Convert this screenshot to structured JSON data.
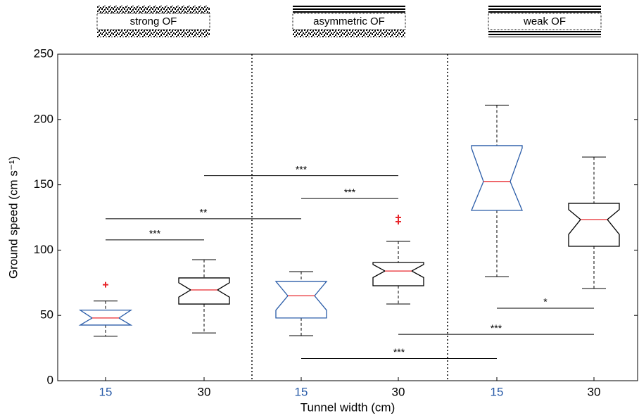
{
  "chart_data": {
    "type": "box",
    "groups": [
      {
        "label": "strong OF"
      },
      {
        "label": "asymmetric OF"
      },
      {
        "label": "weak OF"
      }
    ],
    "categories": [
      "15",
      "30",
      "15",
      "30",
      "15",
      "30"
    ],
    "colors": [
      "#2a5ca8",
      "#000000",
      "#2a5ca8",
      "#000000",
      "#2a5ca8",
      "#000000"
    ],
    "median_color": "#e8262b",
    "boxes": [
      {
        "whisker_low": 34,
        "q1": 42.6,
        "median": 48,
        "q3": 54,
        "whisker_high": 61,
        "notch": [
          41,
          55
        ],
        "outliers": [
          73.5
        ]
      },
      {
        "whisker_low": 36.6,
        "q1": 58.7,
        "median": 69.5,
        "q3": 78.7,
        "whisker_high": 92.7,
        "notch": [
          64,
          75
        ],
        "outliers": []
      },
      {
        "whisker_low": 34.5,
        "q1": 48,
        "median": 65,
        "q3": 76,
        "whisker_high": 83.5,
        "notch": [
          54,
          76
        ],
        "outliers": []
      },
      {
        "whisker_low": 58.7,
        "q1": 72.7,
        "median": 84,
        "q3": 90.5,
        "whisker_high": 106.7,
        "notch": [
          79,
          89
        ],
        "outliers": [
          121.8,
          125
        ]
      },
      {
        "whisker_low": 79.7,
        "q1": 130.4,
        "median": 152.5,
        "q3": 180,
        "whisker_high": 211,
        "notch": [
          128,
          178
        ],
        "outliers": []
      },
      {
        "whisker_low": 70.6,
        "q1": 102.9,
        "median": 123.4,
        "q3": 135.8,
        "whisker_high": 171.3,
        "notch": [
          112,
          131
        ],
        "outliers": []
      }
    ],
    "annotations": [
      {
        "text": "***",
        "from": 0,
        "to": 1,
        "y": 107.8
      },
      {
        "text": "**",
        "from": 0,
        "to": 2,
        "y": 124
      },
      {
        "text": "***",
        "from": 1,
        "to": 3,
        "y": 157
      },
      {
        "text": "***",
        "from": 2,
        "to": 3,
        "y": 139.5
      },
      {
        "text": "*",
        "from": 4,
        "to": 5,
        "y": 55.5
      },
      {
        "text": "***",
        "from": 3,
        "to": 5,
        "y": 35.5
      },
      {
        "text": "***",
        "from": 2,
        "to": 4,
        "y": 17
      }
    ],
    "xlabel": "Tunnel width (cm)",
    "ylabel": "Ground speed (cm s⁻¹)",
    "ylim": [
      0,
      250
    ],
    "yticks": [
      0,
      50,
      100,
      150,
      200,
      250
    ]
  }
}
